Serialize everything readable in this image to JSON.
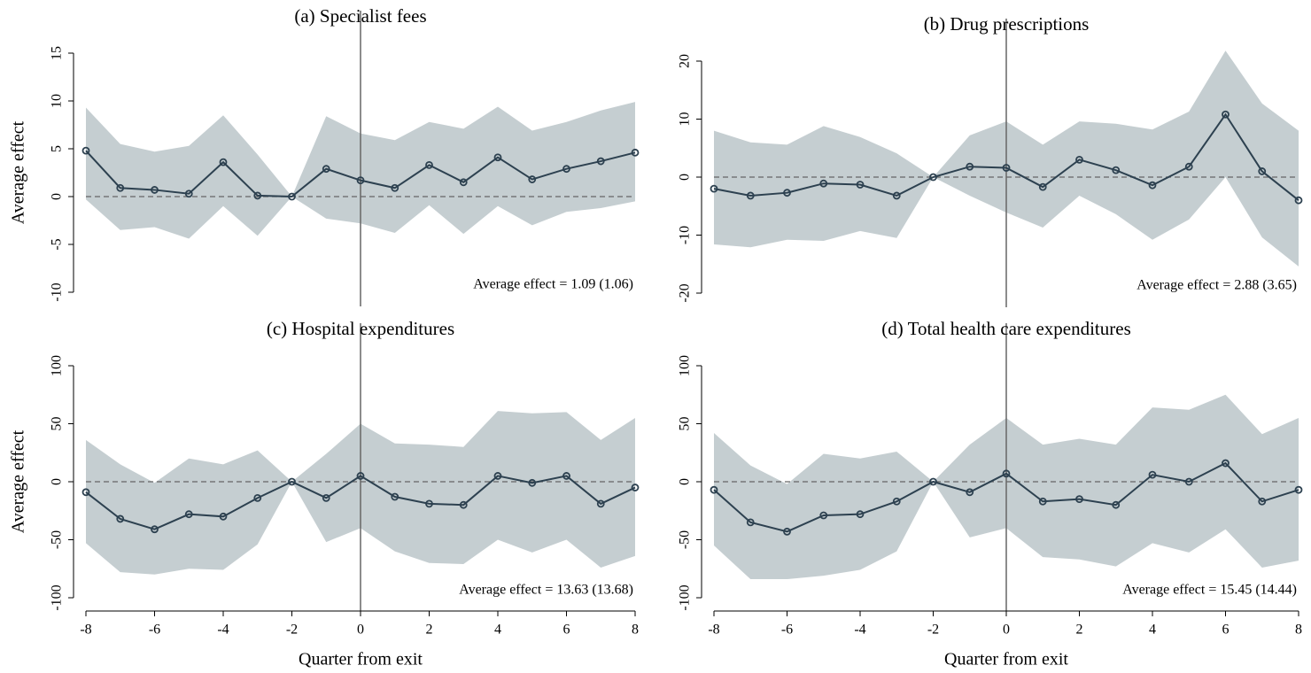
{
  "chart_data": [
    {
      "type": "line",
      "title": "(a) Specialist fees",
      "ylabel": "Average effect",
      "x": [
        -8,
        -7,
        -6,
        -5,
        -4,
        -3,
        -2,
        -1,
        0,
        1,
        2,
        3,
        4,
        5,
        6,
        7,
        8
      ],
      "values": [
        4.8,
        0.9,
        0.7,
        0.3,
        3.6,
        0.1,
        0,
        2.9,
        1.7,
        0.9,
        3.3,
        1.5,
        4.1,
        1.8,
        2.9,
        3.7,
        4.6
      ],
      "upper": [
        9.3,
        5.5,
        4.7,
        5.3,
        8.5,
        4.4,
        0,
        8.4,
        6.6,
        5.9,
        7.8,
        7.1,
        9.4,
        6.9,
        7.8,
        9.0,
        9.9
      ],
      "lower": [
        -0.3,
        -3.5,
        -3.2,
        -4.4,
        -1.0,
        -4.1,
        0,
        -2.3,
        -2.8,
        -3.8,
        -0.9,
        -3.9,
        -1.0,
        -3.0,
        -1.6,
        -1.2,
        -0.5
      ],
      "xlim": [
        -8,
        8
      ],
      "ylim": [
        -10,
        15
      ],
      "yticks": [
        -10,
        -5,
        0,
        5,
        10,
        15
      ],
      "vline": 0,
      "hline": 0,
      "annotation": "Average effect = 1.09 (1.06)",
      "color": "#2d4150",
      "band_color": "#c5ced1"
    },
    {
      "type": "line",
      "title": "(b) Drug prescriptions",
      "x": [
        -8,
        -7,
        -6,
        -5,
        -4,
        -3,
        -2,
        -1,
        0,
        1,
        2,
        3,
        4,
        5,
        6,
        7,
        8
      ],
      "values": [
        -2,
        -3.2,
        -2.7,
        -1.1,
        -1.3,
        -3.2,
        0,
        1.8,
        1.6,
        -1.7,
        3,
        1.2,
        -1.4,
        1.8,
        10.8,
        1,
        -4
      ],
      "upper": [
        8,
        6,
        5.6,
        8.8,
        6.9,
        4.1,
        0,
        7.2,
        9.6,
        5.6,
        9.6,
        9.2,
        8.2,
        11.3,
        21.8,
        12.7,
        8
      ],
      "lower": [
        -11.6,
        -12.1,
        -10.8,
        -11,
        -9.3,
        -10.5,
        0,
        -3.2,
        -6.1,
        -8.7,
        -3.2,
        -6.4,
        -10.8,
        -7.3,
        0,
        -10.4,
        -15.4
      ],
      "xlim": [
        -8,
        8
      ],
      "ylim": [
        -20,
        20
      ],
      "yticks": [
        -20,
        -10,
        0,
        10,
        20
      ],
      "vline": 0,
      "hline": 0,
      "annotation": "Average effect = 2.88 (3.65)",
      "color": "#2d4150",
      "band_color": "#c5ced1"
    },
    {
      "type": "line",
      "title": "(c) Hospital expenditures",
      "ylabel": "Average effect",
      "xlabel": "Quarter from exit",
      "x": [
        -8,
        -7,
        -6,
        -5,
        -4,
        -3,
        -2,
        -1,
        0,
        1,
        2,
        3,
        4,
        5,
        6,
        7,
        8
      ],
      "values": [
        -9,
        -32,
        -41,
        -28,
        -30,
        -14,
        0,
        -14,
        5,
        -13,
        -19,
        -20,
        5,
        -1,
        5,
        -19,
        -5
      ],
      "upper": [
        36,
        15,
        -1,
        20,
        15,
        27,
        0,
        24,
        50,
        33,
        32,
        30,
        61,
        59,
        60,
        36,
        55
      ],
      "lower": [
        -53,
        -78,
        -80,
        -75,
        -76,
        -54,
        0,
        -52,
        -40,
        -60,
        -70,
        -71,
        -50,
        -61,
        -50,
        -74,
        -64
      ],
      "xlim": [
        -8,
        8
      ],
      "xticks": [
        -8,
        -6,
        -4,
        -2,
        0,
        2,
        4,
        6,
        8
      ],
      "ylim": [
        -100,
        100
      ],
      "yticks": [
        -100,
        -50,
        0,
        50,
        100
      ],
      "vline": 0,
      "hline": 0,
      "annotation": "Average effect = 13.63 (13.68)",
      "color": "#2d4150",
      "band_color": "#c5ced1"
    },
    {
      "type": "line",
      "title": "(d) Total health care expenditures",
      "xlabel": "Quarter from exit",
      "x": [
        -8,
        -7,
        -6,
        -5,
        -4,
        -3,
        -2,
        -1,
        0,
        1,
        2,
        3,
        4,
        5,
        6,
        7,
        8
      ],
      "values": [
        -7,
        -35,
        -43,
        -29,
        -28,
        -17,
        0,
        -9,
        7,
        -17,
        -15,
        -20,
        6,
        0,
        16,
        -17,
        -7
      ],
      "upper": [
        42,
        14,
        -2,
        24,
        20,
        26,
        0,
        32,
        55,
        32,
        37,
        32,
        64,
        62,
        75,
        41,
        55
      ],
      "lower": [
        -55,
        -84,
        -84,
        -81,
        -76,
        -60,
        0,
        -48,
        -40,
        -65,
        -67,
        -73,
        -53,
        -61,
        -41,
        -74,
        -68
      ],
      "xlim": [
        -8,
        8
      ],
      "xticks": [
        -8,
        -6,
        -4,
        -2,
        0,
        2,
        4,
        6,
        8
      ],
      "ylim": [
        -100,
        100
      ],
      "yticks": [
        -100,
        -50,
        0,
        50,
        100
      ],
      "vline": 0,
      "hline": 0,
      "annotation": "Average effect = 15.45 (14.44)",
      "color": "#2d4150",
      "band_color": "#c5ced1"
    }
  ]
}
